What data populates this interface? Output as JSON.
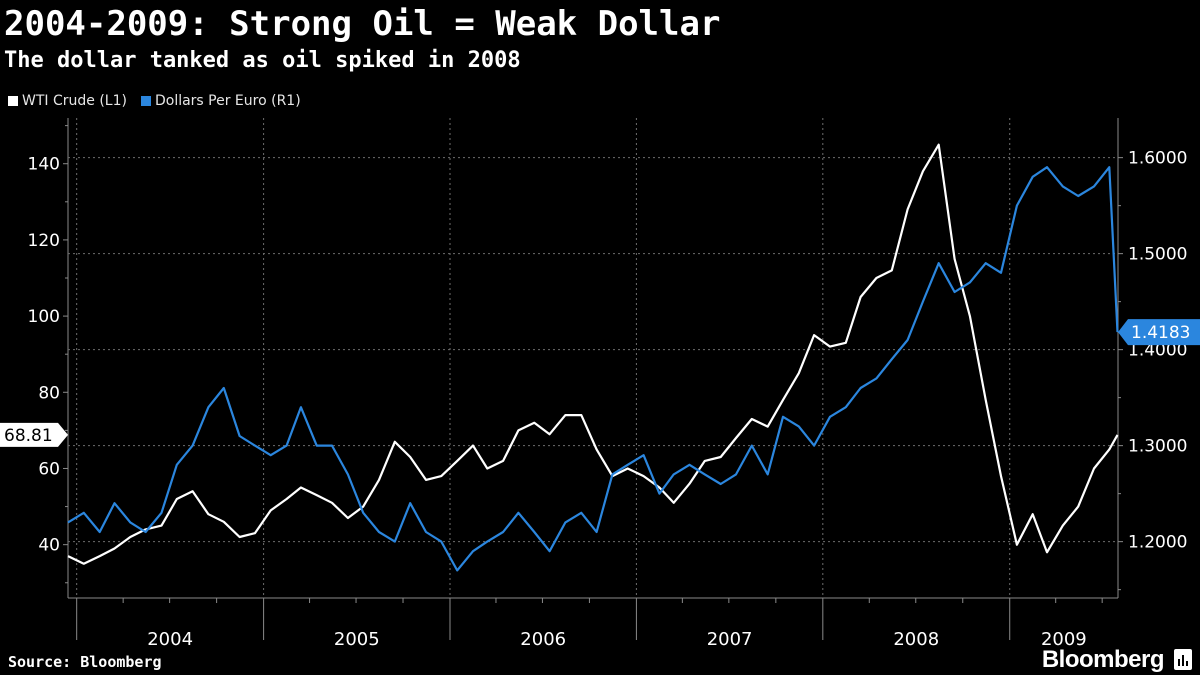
{
  "title": "2004-2009: Strong Oil = Weak Dollar",
  "subtitle": "The dollar tanked as oil spiked in 2008",
  "legend": [
    {
      "label": "WTI Crude (L1)",
      "color": "#ffffff"
    },
    {
      "label": "Dollars Per Euro (R1)",
      "color": "#2b86de"
    }
  ],
  "source": "Source: Bloomberg",
  "brand": "Bloomberg",
  "chart_data": {
    "type": "line",
    "x_range": [
      "2003-12-15",
      "2009-08-01"
    ],
    "x_tick_labels": [
      "2004",
      "2005",
      "2006",
      "2007",
      "2008",
      "2009"
    ],
    "y_left": {
      "label": "",
      "range": [
        26,
        152
      ],
      "ticks": [
        40,
        60,
        80,
        100,
        120,
        140
      ]
    },
    "y_right": {
      "label": "",
      "range": [
        1.1413,
        1.6413
      ],
      "ticks": [
        "1.2000",
        "1.3000",
        "1.4000",
        "1.5000",
        "1.6000"
      ]
    },
    "last_value_labels": {
      "left": "68.81",
      "right": "1.4183"
    },
    "series": [
      {
        "name": "WTI Crude (L1)",
        "axis": "left",
        "color": "#ffffff",
        "points": [
          [
            "2003-12-15",
            37
          ],
          [
            "2004-01-15",
            35
          ],
          [
            "2004-02-15",
            37
          ],
          [
            "2004-03-15",
            39
          ],
          [
            "2004-04-15",
            42
          ],
          [
            "2004-05-15",
            44
          ],
          [
            "2004-06-15",
            45
          ],
          [
            "2004-07-15",
            52
          ],
          [
            "2004-08-15",
            54
          ],
          [
            "2004-09-15",
            48
          ],
          [
            "2004-10-15",
            46
          ],
          [
            "2004-11-15",
            42
          ],
          [
            "2004-12-15",
            43
          ],
          [
            "2005-01-15",
            49
          ],
          [
            "2005-02-15",
            52
          ],
          [
            "2005-03-15",
            55
          ],
          [
            "2005-04-15",
            53
          ],
          [
            "2005-05-15",
            51
          ],
          [
            "2005-06-15",
            47
          ],
          [
            "2005-07-15",
            50
          ],
          [
            "2005-08-15",
            57
          ],
          [
            "2005-09-15",
            67
          ],
          [
            "2005-10-15",
            63
          ],
          [
            "2005-11-15",
            57
          ],
          [
            "2005-12-15",
            58
          ],
          [
            "2006-01-15",
            62
          ],
          [
            "2006-02-15",
            66
          ],
          [
            "2006-03-15",
            60
          ],
          [
            "2006-04-15",
            62
          ],
          [
            "2006-05-15",
            70
          ],
          [
            "2006-06-15",
            72
          ],
          [
            "2006-07-15",
            69
          ],
          [
            "2006-08-15",
            74
          ],
          [
            "2006-09-15",
            74
          ],
          [
            "2006-10-15",
            65
          ],
          [
            "2006-11-15",
            58
          ],
          [
            "2006-12-15",
            60
          ],
          [
            "2007-01-15",
            58
          ],
          [
            "2007-02-15",
            55
          ],
          [
            "2007-03-15",
            51
          ],
          [
            "2007-04-15",
            56
          ],
          [
            "2007-05-15",
            62
          ],
          [
            "2007-06-15",
            63
          ],
          [
            "2007-07-15",
            68
          ],
          [
            "2007-08-15",
            73
          ],
          [
            "2007-09-15",
            71
          ],
          [
            "2007-10-15",
            78
          ],
          [
            "2007-11-15",
            85
          ],
          [
            "2007-12-15",
            95
          ],
          [
            "2008-01-15",
            92
          ],
          [
            "2008-02-15",
            93
          ],
          [
            "2008-03-15",
            105
          ],
          [
            "2008-04-15",
            110
          ],
          [
            "2008-05-15",
            112
          ],
          [
            "2008-06-15",
            128
          ],
          [
            "2008-07-15",
            138
          ],
          [
            "2008-08-15",
            145
          ],
          [
            "2008-09-15",
            115
          ],
          [
            "2008-10-15",
            100
          ],
          [
            "2008-11-15",
            78
          ],
          [
            "2008-12-15",
            58
          ],
          [
            "2009-01-15",
            40
          ],
          [
            "2009-02-15",
            48
          ],
          [
            "2009-03-15",
            38
          ],
          [
            "2009-04-15",
            45
          ],
          [
            "2009-05-15",
            50
          ],
          [
            "2009-06-15",
            60
          ],
          [
            "2009-07-15",
            65
          ],
          [
            "2009-07-31",
            68.81
          ]
        ]
      },
      {
        "name": "Dollars Per Euro (R1)",
        "axis": "right",
        "color": "#2b86de",
        "points": [
          [
            "2003-12-15",
            1.22
          ],
          [
            "2004-01-15",
            1.23
          ],
          [
            "2004-02-15",
            1.21
          ],
          [
            "2004-03-15",
            1.24
          ],
          [
            "2004-04-15",
            1.22
          ],
          [
            "2004-05-15",
            1.21
          ],
          [
            "2004-06-15",
            1.23
          ],
          [
            "2004-07-15",
            1.28
          ],
          [
            "2004-08-15",
            1.3
          ],
          [
            "2004-09-15",
            1.34
          ],
          [
            "2004-10-15",
            1.36
          ],
          [
            "2004-11-15",
            1.31
          ],
          [
            "2004-12-15",
            1.3
          ],
          [
            "2005-01-15",
            1.29
          ],
          [
            "2005-02-15",
            1.3
          ],
          [
            "2005-03-15",
            1.34
          ],
          [
            "2005-04-15",
            1.3
          ],
          [
            "2005-05-15",
            1.3
          ],
          [
            "2005-06-15",
            1.27
          ],
          [
            "2005-07-15",
            1.23
          ],
          [
            "2005-08-15",
            1.21
          ],
          [
            "2005-09-15",
            1.2
          ],
          [
            "2005-10-15",
            1.24
          ],
          [
            "2005-11-15",
            1.21
          ],
          [
            "2005-12-15",
            1.2
          ],
          [
            "2006-01-15",
            1.17
          ],
          [
            "2006-02-15",
            1.19
          ],
          [
            "2006-03-15",
            1.2
          ],
          [
            "2006-04-15",
            1.21
          ],
          [
            "2006-05-15",
            1.23
          ],
          [
            "2006-06-15",
            1.21
          ],
          [
            "2006-07-15",
            1.19
          ],
          [
            "2006-08-15",
            1.22
          ],
          [
            "2006-09-15",
            1.23
          ],
          [
            "2006-10-15",
            1.21
          ],
          [
            "2006-11-15",
            1.27
          ],
          [
            "2006-12-15",
            1.28
          ],
          [
            "2007-01-15",
            1.29
          ],
          [
            "2007-02-15",
            1.25
          ],
          [
            "2007-03-15",
            1.27
          ],
          [
            "2007-04-15",
            1.28
          ],
          [
            "2007-05-15",
            1.27
          ],
          [
            "2007-06-15",
            1.26
          ],
          [
            "2007-07-15",
            1.27
          ],
          [
            "2007-08-15",
            1.3
          ],
          [
            "2007-09-15",
            1.27
          ],
          [
            "2007-10-15",
            1.33
          ],
          [
            "2007-11-15",
            1.32
          ],
          [
            "2007-12-15",
            1.3
          ],
          [
            "2008-01-15",
            1.33
          ],
          [
            "2008-02-15",
            1.34
          ],
          [
            "2008-03-15",
            1.36
          ],
          [
            "2008-04-15",
            1.37
          ],
          [
            "2008-05-15",
            1.39
          ],
          [
            "2008-06-15",
            1.41
          ],
          [
            "2008-07-15",
            1.45
          ],
          [
            "2008-08-15",
            1.49
          ],
          [
            "2008-09-15",
            1.46
          ],
          [
            "2008-10-15",
            1.47
          ],
          [
            "2008-11-15",
            1.49
          ],
          [
            "2008-12-15",
            1.48
          ],
          [
            "2009-01-15",
            1.55
          ],
          [
            "2009-02-15",
            1.58
          ],
          [
            "2009-03-15",
            1.59
          ],
          [
            "2009-04-15",
            1.57
          ],
          [
            "2009-05-15",
            1.56
          ],
          [
            "2009-06-15",
            1.57
          ],
          [
            "2009-07-15",
            1.59
          ],
          [
            "2009-07-31",
            1.4183
          ]
        ]
      }
    ],
    "grid": true,
    "legend_position": "top-left"
  }
}
